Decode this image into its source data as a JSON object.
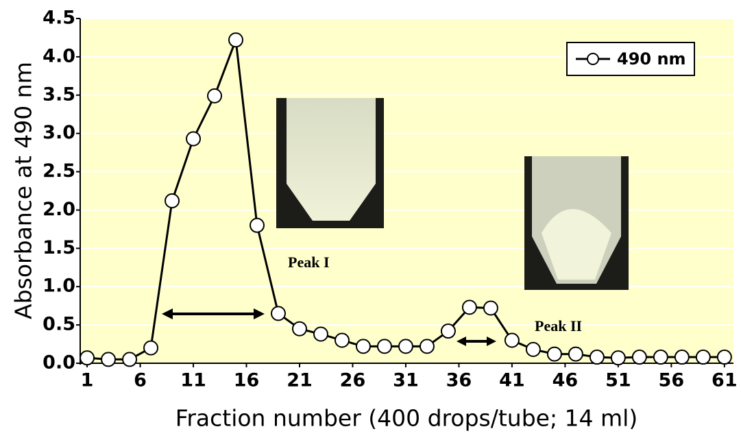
{
  "chart_data": {
    "type": "line",
    "x_label": "Fraction number (400 drops/tube; 14 ml)",
    "y_label": "Absorbance at 490 nm",
    "x": [
      1,
      3,
      5,
      7,
      9,
      11,
      13,
      15,
      17,
      19,
      21,
      23,
      25,
      27,
      29,
      31,
      33,
      35,
      37,
      39,
      41,
      43,
      45,
      47,
      49,
      51,
      53,
      55,
      57,
      59,
      61
    ],
    "series": [
      {
        "name": "490 nm",
        "color": "#000000",
        "values": [
          0.07,
          0.05,
          0.05,
          0.2,
          2.12,
          2.93,
          3.49,
          4.22,
          1.8,
          0.65,
          0.45,
          0.38,
          0.3,
          0.22,
          0.22,
          0.22,
          0.22,
          0.42,
          0.73,
          0.72,
          0.3,
          0.18,
          0.12,
          0.12,
          0.08,
          0.07,
          0.08,
          0.08,
          0.08,
          0.08,
          0.08
        ]
      }
    ],
    "xlim": [
      0.35,
      61.85
    ],
    "xticks": [
      1,
      6,
      11,
      16,
      21,
      26,
      31,
      36,
      41,
      46,
      51,
      56,
      61
    ],
    "ylim": [
      0,
      4.5
    ],
    "yticks": [
      {
        "value": 0,
        "label": "0.0"
      },
      {
        "value": 0.5,
        "label": "0.5"
      },
      {
        "value": 1,
        "label": "1.0"
      },
      {
        "value": 1.5,
        "label": "1.5"
      },
      {
        "value": 2,
        "label": "2.0"
      },
      {
        "value": 2.5,
        "label": "2.5"
      },
      {
        "value": 3,
        "label": "3.0"
      },
      {
        "value": 3.5,
        "label": "3.5"
      },
      {
        "value": 4,
        "label": "4.0"
      },
      {
        "value": 4.5,
        "label": "4.5"
      }
    ],
    "grid": true,
    "legend": "upper right",
    "annotations": [
      "Peak I",
      "Peak II"
    ]
  }
}
